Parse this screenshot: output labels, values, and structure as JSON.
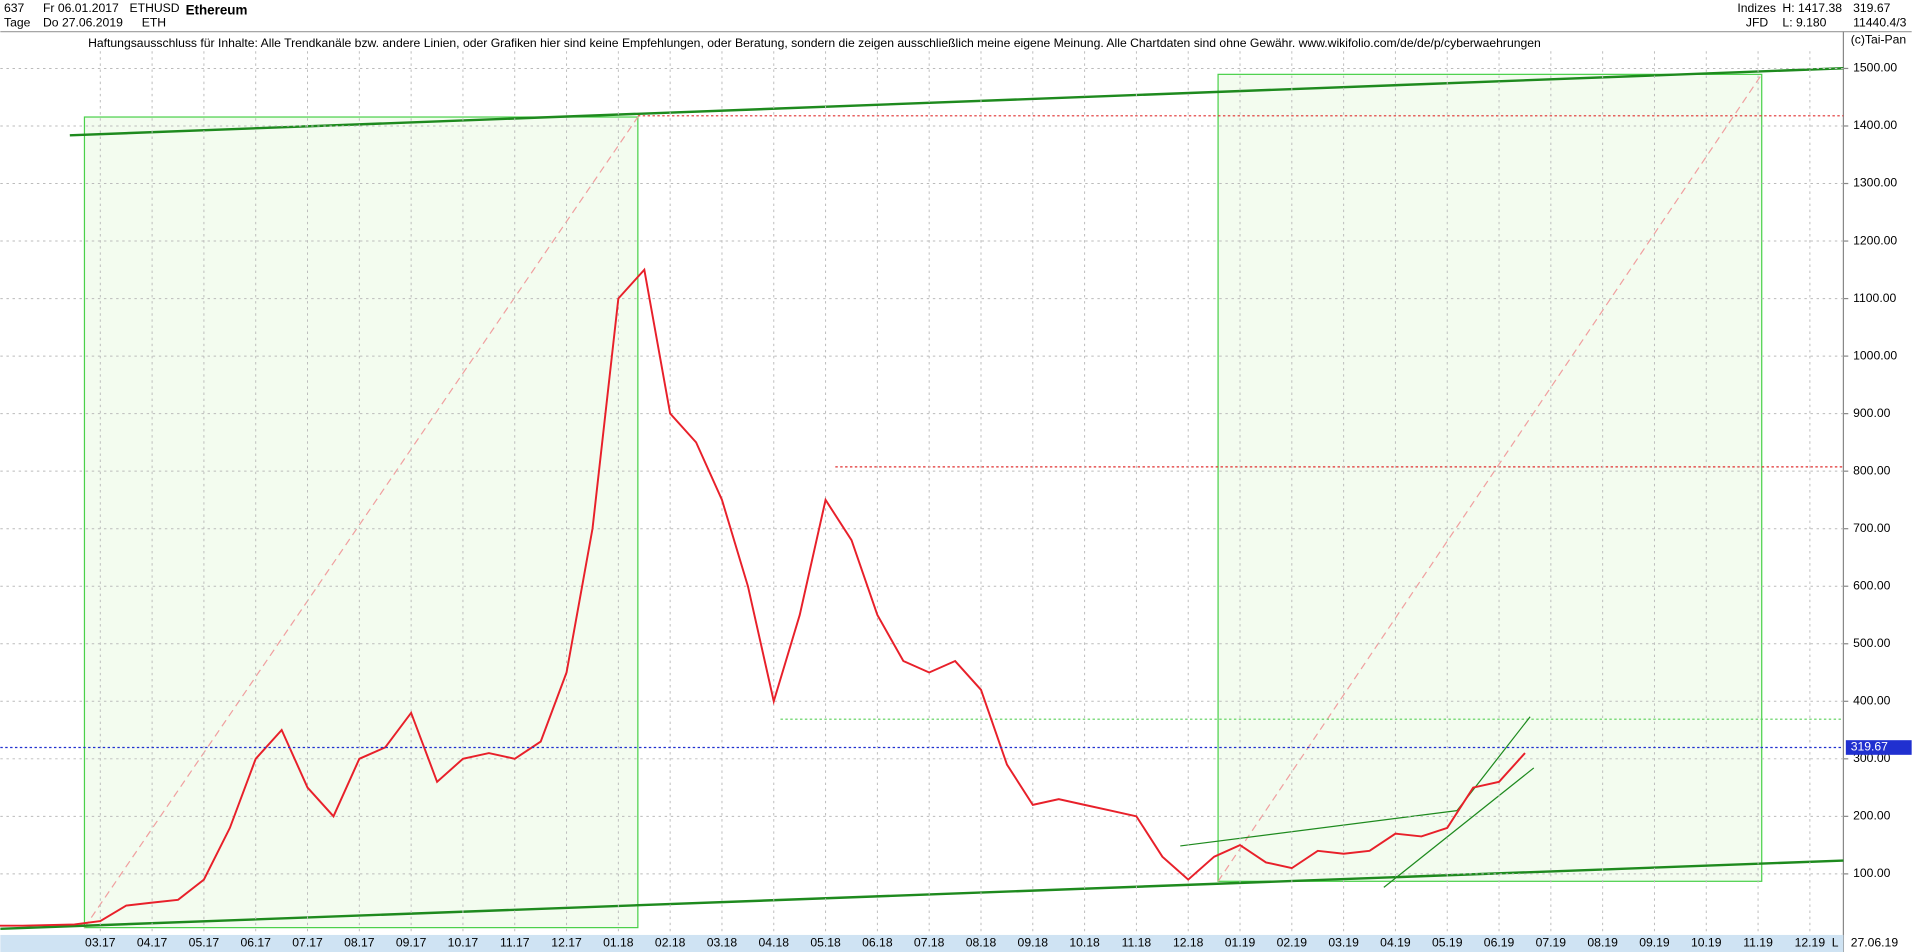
{
  "header": {
    "count": "637",
    "start_date": "Fr 06.01.2017",
    "period": "Tage",
    "end_date": "Do 27.06.2019",
    "symbol": "ETHUSD",
    "short": "ETH",
    "name": "Ethereum",
    "group": "Indizes",
    "source": "JFD",
    "high": "H: 1417.38",
    "low": "L: 9.180",
    "close": "319.67",
    "extra": "11440.4/3",
    "disclaimer": "Haftungsausschluss für Inhalte: Alle Trendkanäle bzw. andere Linien, oder Grafiken hier sind keine Empfehlungen, oder Beratung, sondern die zeigen ausschließlich meine eigene Meinung. Alle Chartdaten sind ohne Gewähr.  www.wikifolio.com/de/de/p/cyberwaehrungen",
    "copyright": "(c)Tai-Pan",
    "footer_date": "27.06.19",
    "footer_mode": "L"
  },
  "chart_data": {
    "type": "line",
    "title": "Ethereum",
    "categories": [
      null,
      null,
      null,
      null,
      "03.17",
      null,
      "04.17",
      null,
      "05.17",
      null,
      "06.17",
      null,
      "07.17",
      null,
      "08.17",
      null,
      "09.17",
      null,
      "10.17",
      null,
      "11.17",
      null,
      "12.17",
      null,
      "01.18",
      null,
      "02.18",
      null,
      "03.18",
      null,
      "04.18",
      null,
      "05.18",
      null,
      "06.18",
      null,
      "07.18",
      null,
      "08.18",
      null,
      "09.18",
      null,
      "10.18",
      null,
      "11.18",
      null,
      "12.18",
      null,
      "01.19",
      null,
      "02.19",
      null,
      "03.19",
      null,
      "04.19",
      null,
      "05.19",
      null,
      "06.19",
      null,
      "07.19",
      null,
      "08.19",
      null,
      "09.19",
      null,
      "10.19",
      null,
      "11.19",
      null,
      "12.19",
      null
    ],
    "series": [
      {
        "name": "ETHUSD",
        "color": "#e8202a",
        "values": [
          10,
          10,
          11,
          12,
          18,
          45,
          50,
          55,
          90,
          180,
          300,
          350,
          250,
          200,
          300,
          320,
          380,
          260,
          300,
          310,
          300,
          330,
          450,
          700,
          1100,
          1150,
          900,
          850,
          750,
          600,
          400,
          550,
          750,
          680,
          550,
          470,
          450,
          470,
          420,
          290,
          220,
          230,
          220,
          210,
          200,
          130,
          90,
          130,
          150,
          120,
          110,
          140,
          135,
          140,
          170,
          165,
          180,
          250,
          260,
          310,
          null,
          null,
          null,
          null,
          null,
          null,
          null,
          null,
          null,
          null,
          null,
          null
        ]
      }
    ],
    "current_price": 319.67,
    "ylim": [
      -4,
      1530
    ],
    "yticks": [
      {
        "value": 100,
        "label": "100.00"
      },
      {
        "value": 200,
        "label": "200.00"
      },
      {
        "value": 300,
        "label": "300.00"
      },
      {
        "value": 400,
        "label": "400.00"
      },
      {
        "value": 500,
        "label": "500.00"
      },
      {
        "value": 600,
        "label": "600.00"
      },
      {
        "value": 700,
        "label": "700.00"
      },
      {
        "value": 800,
        "label": "800.00"
      },
      {
        "value": 900,
        "label": "900.00"
      },
      {
        "value": 1000,
        "label": "1000.00"
      },
      {
        "value": 1100,
        "label": "1100.00"
      },
      {
        "value": 1200,
        "label": "1200.00"
      },
      {
        "value": 1300,
        "label": "1300.00"
      },
      {
        "value": 1400,
        "label": "1400.00"
      },
      {
        "value": 1500,
        "label": "1500.00"
      }
    ],
    "grid": true
  }
}
